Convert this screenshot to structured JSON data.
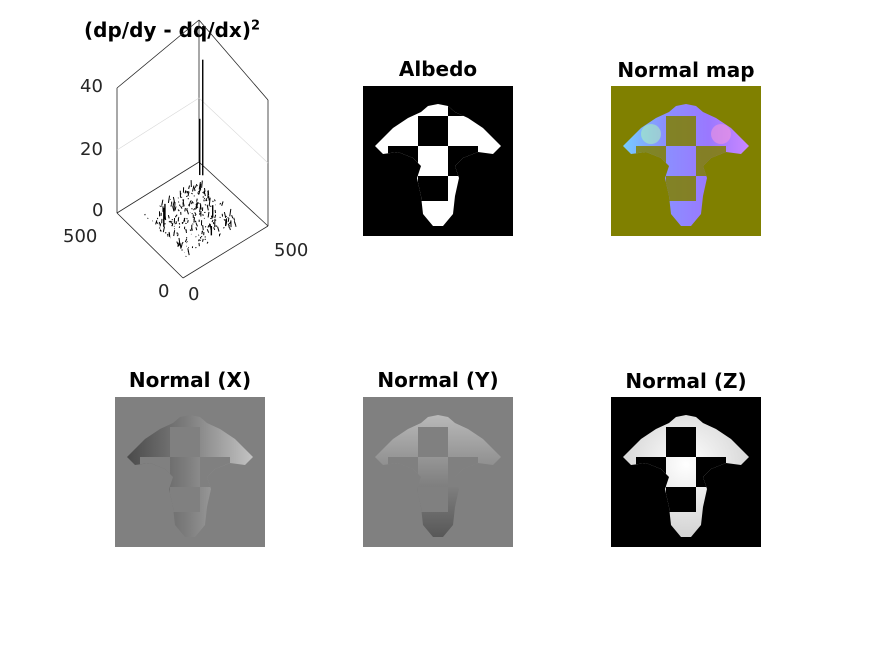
{
  "figure": {
    "titles": {
      "curl": "(dp/dy - dq/dx)",
      "curl_exp": "2",
      "albedo": "Albedo",
      "normal_map": "Normal map",
      "normal_x": "Normal (X)",
      "normal_y": "Normal (Y)",
      "normal_z": "Normal (Z)"
    }
  },
  "chart_data": [
    {
      "type": "surface3d",
      "title": "(dp/dy - dq/dx)^2",
      "zticks": [
        "0",
        "20",
        "40"
      ],
      "xticks": [
        "0",
        "500"
      ],
      "yticks": [
        "0",
        "500"
      ],
      "xlim": [
        0,
        500
      ],
      "ylim": [
        0,
        500
      ],
      "zlim": [
        0,
        40
      ],
      "peaks": [
        {
          "x": 450,
          "y": 430,
          "z": 37
        },
        {
          "x": 440,
          "y": 440,
          "z": 18
        },
        {
          "x": 120,
          "y": 300,
          "z": 6
        },
        {
          "x": 150,
          "y": 330,
          "z": 5
        },
        {
          "x": 330,
          "y": 200,
          "z": 4
        },
        {
          "x": 260,
          "y": 120,
          "z": 3
        }
      ]
    },
    {
      "type": "image",
      "title": "Albedo",
      "colormap": "gray"
    },
    {
      "type": "image",
      "title": "Normal map",
      "background": "#808000"
    },
    {
      "type": "image",
      "title": "Normal (X)",
      "background": "#808080"
    },
    {
      "type": "image",
      "title": "Normal (Y)",
      "background": "#808080"
    },
    {
      "type": "image",
      "title": "Normal (Z)",
      "background": "#000000"
    }
  ]
}
